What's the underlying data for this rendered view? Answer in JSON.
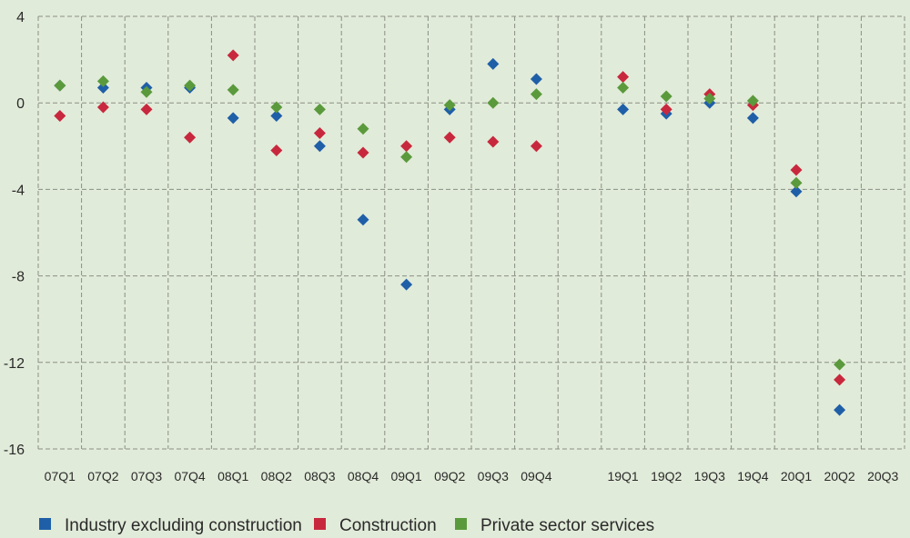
{
  "chart_data": {
    "type": "scatter",
    "title": "",
    "xlabel": "",
    "ylabel": "",
    "ylim": [
      -16,
      4
    ],
    "yticks": [
      4,
      0,
      -4,
      -8,
      -12,
      -16
    ],
    "grid": {
      "vertical": true,
      "horizontal": true,
      "style": "dashed"
    },
    "legend_position": "bottom",
    "categories": [
      "07Q1",
      "07Q2",
      "07Q3",
      "07Q4",
      "08Q1",
      "08Q2",
      "08Q3",
      "08Q4",
      "09Q1",
      "09Q2",
      "09Q3",
      "09Q4",
      "",
      "19Q1",
      "19Q2",
      "19Q3",
      "19Q4",
      "20Q1",
      "20Q2",
      "20Q3"
    ],
    "series": [
      {
        "name": "Industry excluding construction",
        "color": "#1f5fa8",
        "values": [
          0.8,
          0.7,
          0.7,
          0.7,
          -0.7,
          -0.6,
          -2.0,
          -5.4,
          -8.4,
          -0.3,
          1.8,
          1.1,
          null,
          -0.3,
          -0.5,
          0.0,
          -0.7,
          -4.1,
          -14.2,
          null
        ]
      },
      {
        "name": "Construction",
        "color": "#c8283d",
        "values": [
          -0.6,
          -0.2,
          -0.3,
          -1.6,
          2.2,
          -2.2,
          -1.4,
          -2.3,
          -2.0,
          -1.6,
          -1.8,
          -2.0,
          null,
          1.2,
          -0.3,
          0.4,
          -0.1,
          -3.1,
          -12.8,
          null
        ]
      },
      {
        "name": "Private sector services",
        "color": "#5a9a3c",
        "values": [
          0.8,
          1.0,
          0.5,
          0.8,
          0.6,
          -0.2,
          -0.3,
          -1.2,
          -2.5,
          -0.1,
          0.0,
          0.4,
          null,
          0.7,
          0.3,
          0.2,
          0.1,
          -3.7,
          -12.1,
          null
        ]
      }
    ]
  }
}
